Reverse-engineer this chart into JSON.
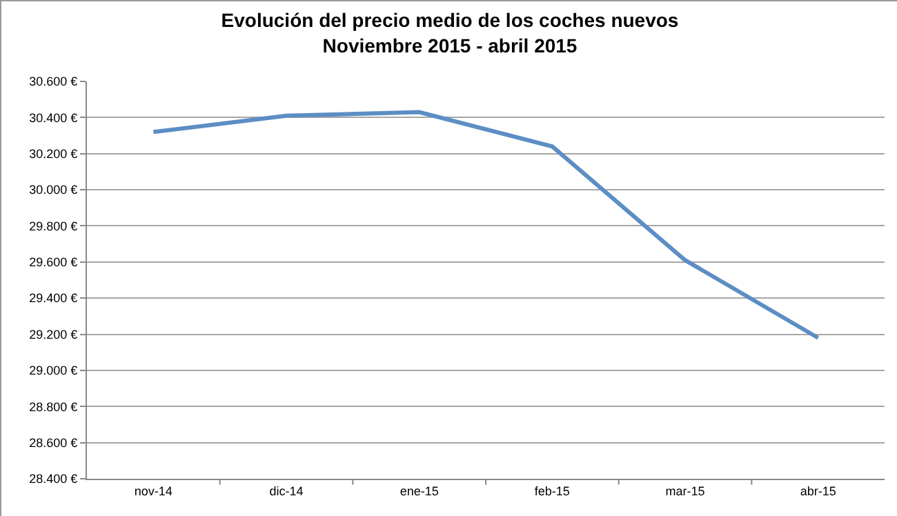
{
  "chart_data": {
    "type": "line",
    "title": "Evolución del precio medio de los coches nuevos\nNoviembre 2015 - abril 2015",
    "categories": [
      "nov-14",
      "dic-14",
      "ene-15",
      "feb-15",
      "mar-15",
      "abr-15"
    ],
    "series": [
      {
        "color": "#5b8ec4",
        "values": [
          30320,
          30410,
          30430,
          30240,
          29610,
          29180
        ]
      }
    ],
    "ylim": [
      28400,
      30600
    ],
    "yticks": [
      {
        "value": 28400,
        "label": "28.400 €"
      },
      {
        "value": 28600,
        "label": "28.600 €"
      },
      {
        "value": 28800,
        "label": "28.800 €"
      },
      {
        "value": 29000,
        "label": "29.000 €"
      },
      {
        "value": 29200,
        "label": "29.200 €"
      },
      {
        "value": 29400,
        "label": "29.400 €"
      },
      {
        "value": 29600,
        "label": "29.600 €"
      },
      {
        "value": 29800,
        "label": "29.800 €"
      },
      {
        "value": 30000,
        "label": "30.000 €"
      },
      {
        "value": 30200,
        "label": "30.200 €"
      },
      {
        "value": 30400,
        "label": "30.400 €"
      },
      {
        "value": 30600,
        "label": "30.600 €"
      }
    ],
    "grid": "y",
    "marker": "none",
    "line_style": "solid"
  }
}
